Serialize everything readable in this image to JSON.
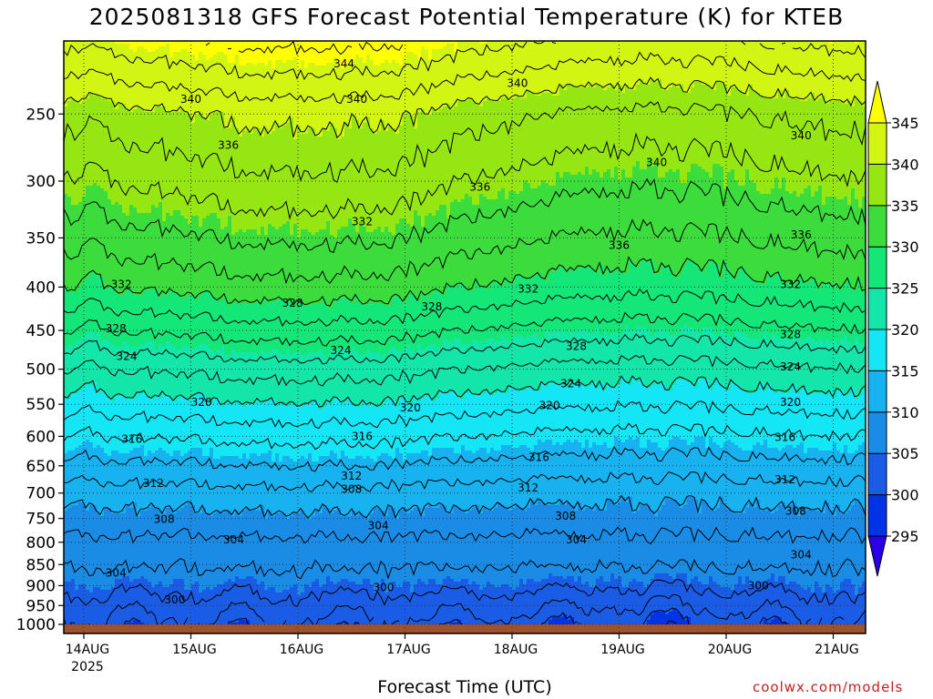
{
  "chart_data": {
    "type": "heatmap",
    "title": "2025081318 GFS Forecast Potential Temperature (K) for KTEB",
    "xlabel": "Forecast Time (UTC)",
    "ylabel": "",
    "y_scale": "log",
    "y_inverted": true,
    "ylim": [
      1025,
      205
    ],
    "y_ticks": [
      250,
      300,
      350,
      400,
      450,
      500,
      550,
      600,
      650,
      700,
      750,
      800,
      850,
      900,
      950,
      1000
    ],
    "y_tick_labels": [
      "250",
      "300",
      "350",
      "400",
      "450",
      "500",
      "550",
      "600",
      "650",
      "700",
      "750",
      "800",
      "850",
      "900",
      "950",
      "1000"
    ],
    "x_ticks": [
      "14AUG",
      "15AUG",
      "16AUG",
      "17AUG",
      "18AUG",
      "19AUG",
      "20AUG",
      "21AUG"
    ],
    "x_year_label": "2025",
    "grid": true,
    "colorbar": {
      "levels": [
        295,
        300,
        305,
        310,
        315,
        320,
        325,
        330,
        335,
        340,
        345
      ],
      "tick_labels": [
        "295",
        "300",
        "305",
        "310",
        "315",
        "320",
        "325",
        "330",
        "335",
        "340",
        "345"
      ],
      "colors": [
        "#2a00e6",
        "#0033e6",
        "#1a5ce6",
        "#1a8ce6",
        "#19b2f0",
        "#14e6f5",
        "#14e6aa",
        "#14e678",
        "#3cdc3c",
        "#96e614",
        "#d2f514",
        "#ffff00"
      ],
      "extend": "both"
    },
    "contour_labels": [
      {
        "value": "344",
        "day": 2.43,
        "p": 218
      },
      {
        "value": "340",
        "day": 1.0,
        "p": 240
      },
      {
        "value": "340",
        "day": 2.55,
        "p": 240
      },
      {
        "value": "340",
        "day": 4.05,
        "p": 230
      },
      {
        "value": "340",
        "day": 5.35,
        "p": 285
      },
      {
        "value": "340",
        "day": 6.7,
        "p": 265
      },
      {
        "value": "336",
        "day": 1.35,
        "p": 272
      },
      {
        "value": "336",
        "day": 3.7,
        "p": 305
      },
      {
        "value": "336",
        "day": 5.0,
        "p": 357
      },
      {
        "value": "336",
        "day": 6.7,
        "p": 347
      },
      {
        "value": "332",
        "day": 0.35,
        "p": 397
      },
      {
        "value": "332",
        "day": 2.6,
        "p": 335
      },
      {
        "value": "332",
        "day": 4.15,
        "p": 402
      },
      {
        "value": "332",
        "day": 6.6,
        "p": 397
      },
      {
        "value": "328",
        "day": 0.3,
        "p": 448
      },
      {
        "value": "328",
        "day": 1.95,
        "p": 418
      },
      {
        "value": "328",
        "day": 3.25,
        "p": 422
      },
      {
        "value": "328",
        "day": 4.6,
        "p": 470
      },
      {
        "value": "328",
        "day": 6.6,
        "p": 455
      },
      {
        "value": "324",
        "day": 0.4,
        "p": 483
      },
      {
        "value": "324",
        "day": 2.4,
        "p": 475
      },
      {
        "value": "324",
        "day": 4.55,
        "p": 520
      },
      {
        "value": "324",
        "day": 6.6,
        "p": 497
      },
      {
        "value": "320",
        "day": 1.1,
        "p": 547
      },
      {
        "value": "320",
        "day": 3.05,
        "p": 555
      },
      {
        "value": "320",
        "day": 4.35,
        "p": 552
      },
      {
        "value": "320",
        "day": 6.6,
        "p": 547
      },
      {
        "value": "316",
        "day": 0.45,
        "p": 605
      },
      {
        "value": "316",
        "day": 2.6,
        "p": 600
      },
      {
        "value": "316",
        "day": 4.25,
        "p": 635
      },
      {
        "value": "316",
        "day": 6.55,
        "p": 602
      },
      {
        "value": "312",
        "day": 0.65,
        "p": 682
      },
      {
        "value": "312",
        "day": 2.5,
        "p": 668
      },
      {
        "value": "312",
        "day": 4.15,
        "p": 690
      },
      {
        "value": "312",
        "day": 6.55,
        "p": 675
      },
      {
        "value": "308",
        "day": 2.5,
        "p": 693
      },
      {
        "value": "308",
        "day": 0.75,
        "p": 752
      },
      {
        "value": "308",
        "day": 4.5,
        "p": 745
      },
      {
        "value": "308",
        "day": 6.65,
        "p": 735
      },
      {
        "value": "304",
        "day": 1.4,
        "p": 795
      },
      {
        "value": "304",
        "day": 2.75,
        "p": 765
      },
      {
        "value": "304",
        "day": 4.6,
        "p": 795
      },
      {
        "value": "304",
        "day": 6.7,
        "p": 828
      },
      {
        "value": "304",
        "day": 0.3,
        "p": 870
      },
      {
        "value": "300",
        "day": 0.85,
        "p": 935
      },
      {
        "value": "300",
        "day": 2.8,
        "p": 905
      },
      {
        "value": "300",
        "day": 6.3,
        "p": 900
      }
    ]
  },
  "credit": "coolwx.com/models"
}
